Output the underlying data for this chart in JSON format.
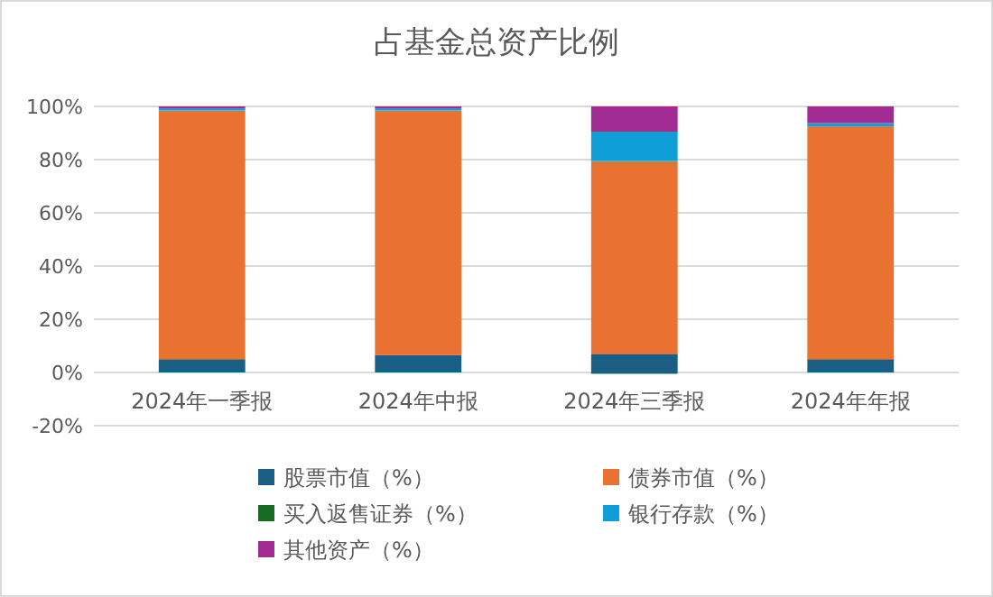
{
  "chart_data": {
    "type": "bar",
    "title": "占基金总资产比例",
    "stacked": true,
    "grid": "y",
    "legend": "bottom",
    "categories": [
      "2024年一季报",
      "2024年中报",
      "2024年三季报",
      "2024年年报"
    ],
    "ylim": [
      -20,
      100
    ],
    "yticks": [
      {
        "value": -20,
        "label": "-20%"
      },
      {
        "value": 0,
        "label": "0%"
      },
      {
        "value": 20,
        "label": "20%"
      },
      {
        "value": 40,
        "label": "40%"
      },
      {
        "value": 60,
        "label": "60%"
      },
      {
        "value": 80,
        "label": "80%"
      },
      {
        "value": 100,
        "label": "100%"
      }
    ],
    "series": [
      {
        "name": "股票市值（%）",
        "color": "#1a5e83",
        "values": [
          5,
          6.5,
          7,
          5
        ]
      },
      {
        "name": "债券市值（%）",
        "color": "#e97132",
        "values": [
          93.5,
          92,
          72.5,
          87.5
        ]
      },
      {
        "name": "买入返售证券（%）",
        "color": "#196b24",
        "values": [
          0,
          0,
          -0.5,
          0
        ]
      },
      {
        "name": "银行存款（%）",
        "color": "#0f9ed5",
        "values": [
          0.8,
          0.8,
          11,
          1.3
        ]
      },
      {
        "name": "其他资产（%）",
        "color": "#a02b93",
        "values": [
          0.7,
          0.7,
          9.5,
          6.2
        ]
      }
    ]
  }
}
